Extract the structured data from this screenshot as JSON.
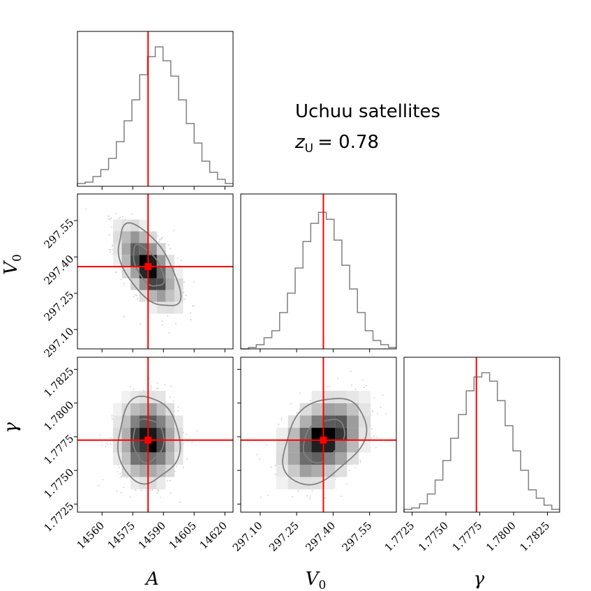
{
  "chart_data": {
    "type": "corner",
    "title_lines": [
      "Uchuu satellites",
      "z_U = 0.78"
    ],
    "annotation": {
      "line1": "Uchuu satellites",
      "z_symbol": "z",
      "z_sub": "U",
      "z_value": "= 0.78"
    },
    "parameters": [
      {
        "name": "A",
        "label": "A",
        "truth": 14582.5,
        "range": [
          14548,
          14624
        ],
        "ticks": [
          14560,
          14575,
          14590,
          14605,
          14620
        ],
        "tick_labels": [
          "14560",
          "14575",
          "14590",
          "14605",
          "14620"
        ]
      },
      {
        "name": "V0",
        "label": "V",
        "label_sub": "0",
        "truth": 297.36,
        "range": [
          297.02,
          297.66
        ],
        "ticks": [
          297.1,
          297.25,
          297.4,
          297.55
        ],
        "tick_labels": [
          "297.10",
          "297.25",
          "297.40",
          "297.55"
        ]
      },
      {
        "name": "gamma",
        "label": "γ",
        "truth": 1.77725,
        "range": [
          1.7719,
          1.7834
        ],
        "ticks": [
          1.7725,
          1.775,
          1.7775,
          1.78,
          1.7825
        ],
        "tick_labels": [
          "1.7725",
          "1.7750",
          "1.7775",
          "1.7800",
          "1.7825"
        ]
      }
    ],
    "histograms": [
      {
        "param": "A",
        "bin_start": 14548,
        "bin_width": 3.8,
        "counts": [
          0.02,
          0.03,
          0.07,
          0.12,
          0.2,
          0.32,
          0.47,
          0.62,
          0.8,
          0.93,
          1.0,
          0.9,
          0.79,
          0.62,
          0.45,
          0.31,
          0.18,
          0.1,
          0.05,
          0.02
        ]
      },
      {
        "param": "V0",
        "bin_start": 297.02,
        "bin_width": 0.032,
        "counts": [
          0.0,
          0.01,
          0.03,
          0.08,
          0.13,
          0.26,
          0.4,
          0.58,
          0.77,
          0.9,
          0.98,
          0.93,
          0.78,
          0.6,
          0.43,
          0.26,
          0.13,
          0.06,
          0.03,
          0.01
        ]
      },
      {
        "param": "gamma",
        "bin_start": 1.7719,
        "bin_width": 0.000575,
        "counts": [
          0.02,
          0.03,
          0.06,
          0.13,
          0.23,
          0.37,
          0.53,
          0.7,
          0.87,
          0.97,
          1.0,
          0.94,
          0.8,
          0.62,
          0.44,
          0.3,
          0.16,
          0.1,
          0.05,
          0.02
        ]
      }
    ],
    "correlations": {
      "A_V0": -0.6,
      "A_gamma": 0.0,
      "V0_gamma": 0.35
    },
    "sigma": {
      "A": 7.5,
      "V0": 0.085,
      "gamma": 0.0016
    },
    "contour_levels_sigma": [
      1,
      2
    ],
    "colors": {
      "truth": "#ff0000",
      "contour": "#808080",
      "hist": "#808080",
      "points": "#c8c8c8"
    }
  }
}
